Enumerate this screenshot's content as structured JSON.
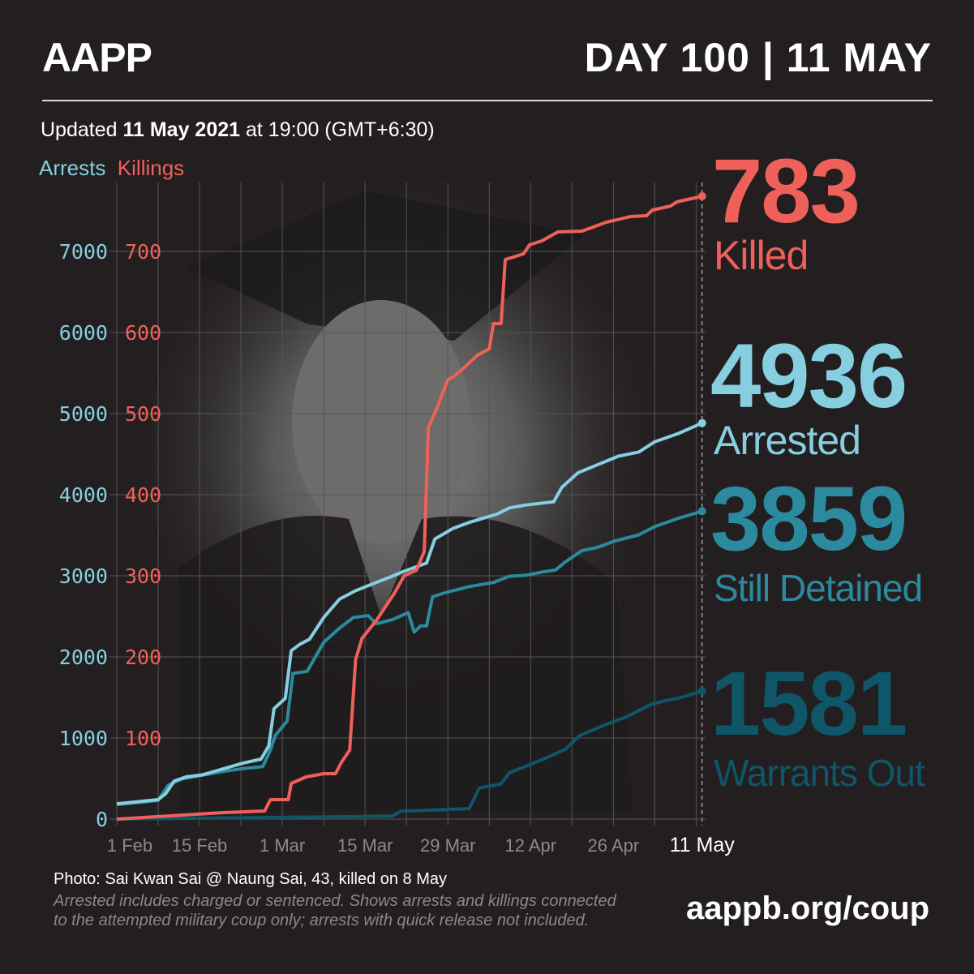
{
  "header": {
    "logo": "AAPP",
    "day": "DAY 100 | 11 MAY"
  },
  "updated": {
    "prefix": "Updated ",
    "date": "11 May 2021",
    "suffix": " at 19:00 (GMT+6:30)"
  },
  "legend": {
    "arrests": "Arrests",
    "killings": "Killings"
  },
  "stats": [
    {
      "value": "783",
      "label": "Killed",
      "color": "#f0605a"
    },
    {
      "value": "4936",
      "label": "Arrested",
      "color": "#86cfe0"
    },
    {
      "value": "3859",
      "label": "Still Detained",
      "color": "#2b8a9e"
    },
    {
      "value": "1581",
      "label": "Warrants Out",
      "color": "#0e5668"
    }
  ],
  "footer": {
    "photo": "Photo: Sai Kwan Sai @ Naung Sai, 43, killed on 8 May",
    "note1": "Arrested includes charged or sentenced. Shows arrests and killings connected",
    "note2": "to the attempted military coup only; arrests with quick release not included.",
    "url": "aappb.org/coup"
  },
  "chart_data": {
    "type": "line",
    "x_unit": "days since 1 Feb 2021",
    "xlim": [
      0,
      99
    ],
    "x_ticks": [
      {
        "day": 0,
        "label": "1 Feb"
      },
      {
        "day": 14,
        "label": "15 Feb"
      },
      {
        "day": 28,
        "label": "1 Mar"
      },
      {
        "day": 42,
        "label": "15 Mar"
      },
      {
        "day": 56,
        "label": "29 Mar"
      },
      {
        "day": 70,
        "label": "12 Apr"
      },
      {
        "day": 84,
        "label": "26 Apr"
      },
      {
        "day": 99,
        "label": "11 May"
      }
    ],
    "y_left": {
      "label": "Arrests",
      "ticks": [
        "0",
        "1000",
        "2000",
        "3000",
        "4000",
        "5000",
        "6000",
        "7000"
      ],
      "ylim": [
        0,
        7000
      ]
    },
    "y_right": {
      "label": "Killings",
      "ticks": [
        "100",
        "200",
        "300",
        "400",
        "500",
        "600",
        "700"
      ],
      "ylim": [
        0,
        700
      ]
    },
    "grid": true,
    "series": [
      {
        "name": "Killings",
        "axis": "killings",
        "color": "#f0605a",
        "points": [
          [
            0,
            0
          ],
          [
            18,
            8
          ],
          [
            25,
            10
          ],
          [
            26,
            24
          ],
          [
            29,
            24
          ],
          [
            29.5,
            44
          ],
          [
            32,
            52
          ],
          [
            35,
            56
          ],
          [
            37,
            56
          ],
          [
            38,
            70
          ],
          [
            39.4,
            85
          ],
          [
            40.4,
            197
          ],
          [
            41.5,
            223
          ],
          [
            44,
            246
          ],
          [
            47,
            279
          ],
          [
            48.6,
            300
          ],
          [
            50.7,
            307
          ],
          [
            52,
            330
          ],
          [
            52.7,
            483
          ],
          [
            54,
            504
          ],
          [
            56,
            542
          ],
          [
            57,
            546
          ],
          [
            58.5,
            555
          ],
          [
            61,
            572
          ],
          [
            63,
            580
          ],
          [
            63.7,
            611
          ],
          [
            65,
            611
          ],
          [
            65.7,
            690
          ],
          [
            68.8,
            697
          ],
          [
            69.8,
            708
          ],
          [
            71.9,
            713
          ],
          [
            74.6,
            724
          ],
          [
            78.7,
            725
          ],
          [
            82.8,
            736
          ],
          [
            86.9,
            743
          ],
          [
            89.6,
            744
          ],
          [
            90.6,
            751
          ],
          [
            93.7,
            756
          ],
          [
            94.7,
            761
          ],
          [
            99,
            768
          ]
        ]
      },
      {
        "name": "Arrested",
        "axis": "arrests",
        "color": "#86cfe0",
        "points": [
          [
            0,
            189
          ],
          [
            7,
            240
          ],
          [
            8.3,
            316
          ],
          [
            9.7,
            469
          ],
          [
            11.7,
            520
          ],
          [
            14.5,
            546
          ],
          [
            21.3,
            689
          ],
          [
            24.4,
            740
          ],
          [
            25.7,
            903
          ],
          [
            26.6,
            1362
          ],
          [
            28.5,
            1490
          ],
          [
            29.5,
            2077
          ],
          [
            30.9,
            2153
          ],
          [
            32.6,
            2219
          ],
          [
            35,
            2485
          ],
          [
            37.7,
            2714
          ],
          [
            40.4,
            2816
          ],
          [
            43.9,
            2918
          ],
          [
            46.6,
            2995
          ],
          [
            48.6,
            3056
          ],
          [
            52.4,
            3158
          ],
          [
            53.8,
            3454
          ],
          [
            56.8,
            3582
          ],
          [
            59.6,
            3658
          ],
          [
            64.3,
            3760
          ],
          [
            66.4,
            3837
          ],
          [
            69.1,
            3872
          ],
          [
            73.9,
            3913
          ],
          [
            75.3,
            4092
          ],
          [
            78,
            4270
          ],
          [
            81.4,
            4372
          ],
          [
            84.8,
            4474
          ],
          [
            88.3,
            4526
          ],
          [
            91,
            4653
          ],
          [
            95,
            4755
          ],
          [
            99,
            4883
          ]
        ]
      },
      {
        "name": "Still Detained",
        "axis": "arrests",
        "color": "#2b8a9e",
        "points": [
          [
            0,
            179
          ],
          [
            7,
            230
          ],
          [
            8.7,
            418
          ],
          [
            11,
            495
          ],
          [
            17.9,
            587
          ],
          [
            21.3,
            622
          ],
          [
            24.7,
            648
          ],
          [
            26,
            852
          ],
          [
            26.8,
            1031
          ],
          [
            28.8,
            1209
          ],
          [
            29.8,
            1796
          ],
          [
            32.2,
            1821
          ],
          [
            35,
            2179
          ],
          [
            37.7,
            2357
          ],
          [
            40,
            2485
          ],
          [
            42.5,
            2510
          ],
          [
            43.9,
            2408
          ],
          [
            46.6,
            2459
          ],
          [
            49.3,
            2546
          ],
          [
            50.3,
            2306
          ],
          [
            51.4,
            2383
          ],
          [
            52.4,
            2383
          ],
          [
            53.4,
            2740
          ],
          [
            55.5,
            2791
          ],
          [
            59.6,
            2867
          ],
          [
            63.7,
            2918
          ],
          [
            66.4,
            2995
          ],
          [
            69.1,
            3005
          ],
          [
            71.9,
            3046
          ],
          [
            74.2,
            3071
          ],
          [
            75.9,
            3173
          ],
          [
            78.7,
            3311
          ],
          [
            81.4,
            3352
          ],
          [
            84.2,
            3429
          ],
          [
            88.3,
            3505
          ],
          [
            91,
            3607
          ],
          [
            95,
            3709
          ],
          [
            99,
            3796
          ]
        ]
      },
      {
        "name": "Warrants Out",
        "axis": "arrests",
        "color": "#0e5668",
        "points": [
          [
            0,
            0
          ],
          [
            46.6,
            36
          ],
          [
            48,
            97
          ],
          [
            58.9,
            128
          ],
          [
            59.6,
            128
          ],
          [
            61.3,
            383
          ],
          [
            65,
            434
          ],
          [
            66.4,
            571
          ],
          [
            69.1,
            648
          ],
          [
            72.5,
            750
          ],
          [
            75.9,
            862
          ],
          [
            78.3,
            1031
          ],
          [
            82.8,
            1168
          ],
          [
            86.2,
            1260
          ],
          [
            90.3,
            1413
          ],
          [
            93,
            1464
          ],
          [
            95,
            1490
          ],
          [
            99,
            1577
          ]
        ]
      }
    ]
  }
}
